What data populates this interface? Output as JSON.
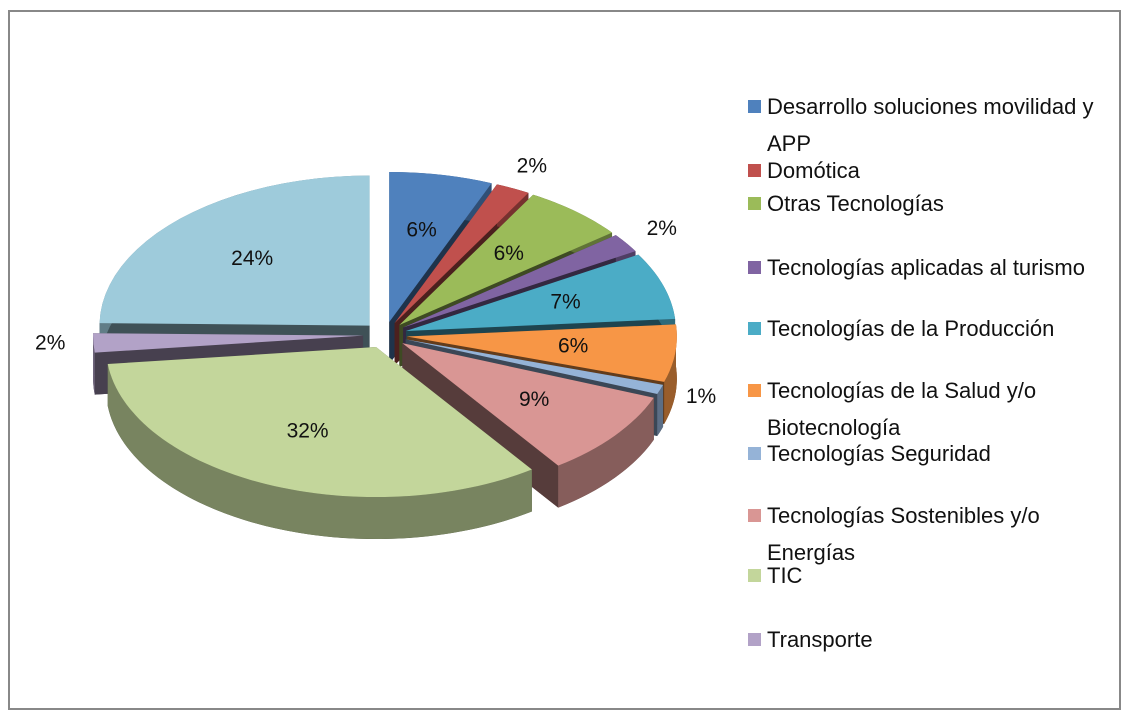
{
  "chart_data": {
    "type": "pie",
    "categories": [
      "Desarrollo soluciones movilidad y APP",
      "Domótica",
      "Otras Tecnologías",
      "Tecnologías aplicadas al turismo",
      "Tecnologías de la Producción",
      "Tecnologías de la Salud y/o Biotecnología",
      "Tecnologías Seguridad",
      "Tecnologías Sostenibles y/o Energías",
      "TIC",
      "Transporte",
      null
    ],
    "values": [
      6,
      2,
      6,
      2,
      7,
      6,
      1,
      9,
      32,
      2,
      24
    ],
    "value_labels": [
      "6%",
      "2%",
      "6%",
      "2%",
      "7%",
      "6%",
      "1%",
      "9%",
      "32%",
      "2%",
      "24%"
    ],
    "colors": [
      "#4f81bd",
      "#c0504d",
      "#9bbb59",
      "#8064a2",
      "#4bacc6",
      "#f79646",
      "#95b3d7",
      "#d99694",
      "#c3d69b",
      "#b2a2c7",
      "#9ecbdb"
    ],
    "legend": "right"
  }
}
